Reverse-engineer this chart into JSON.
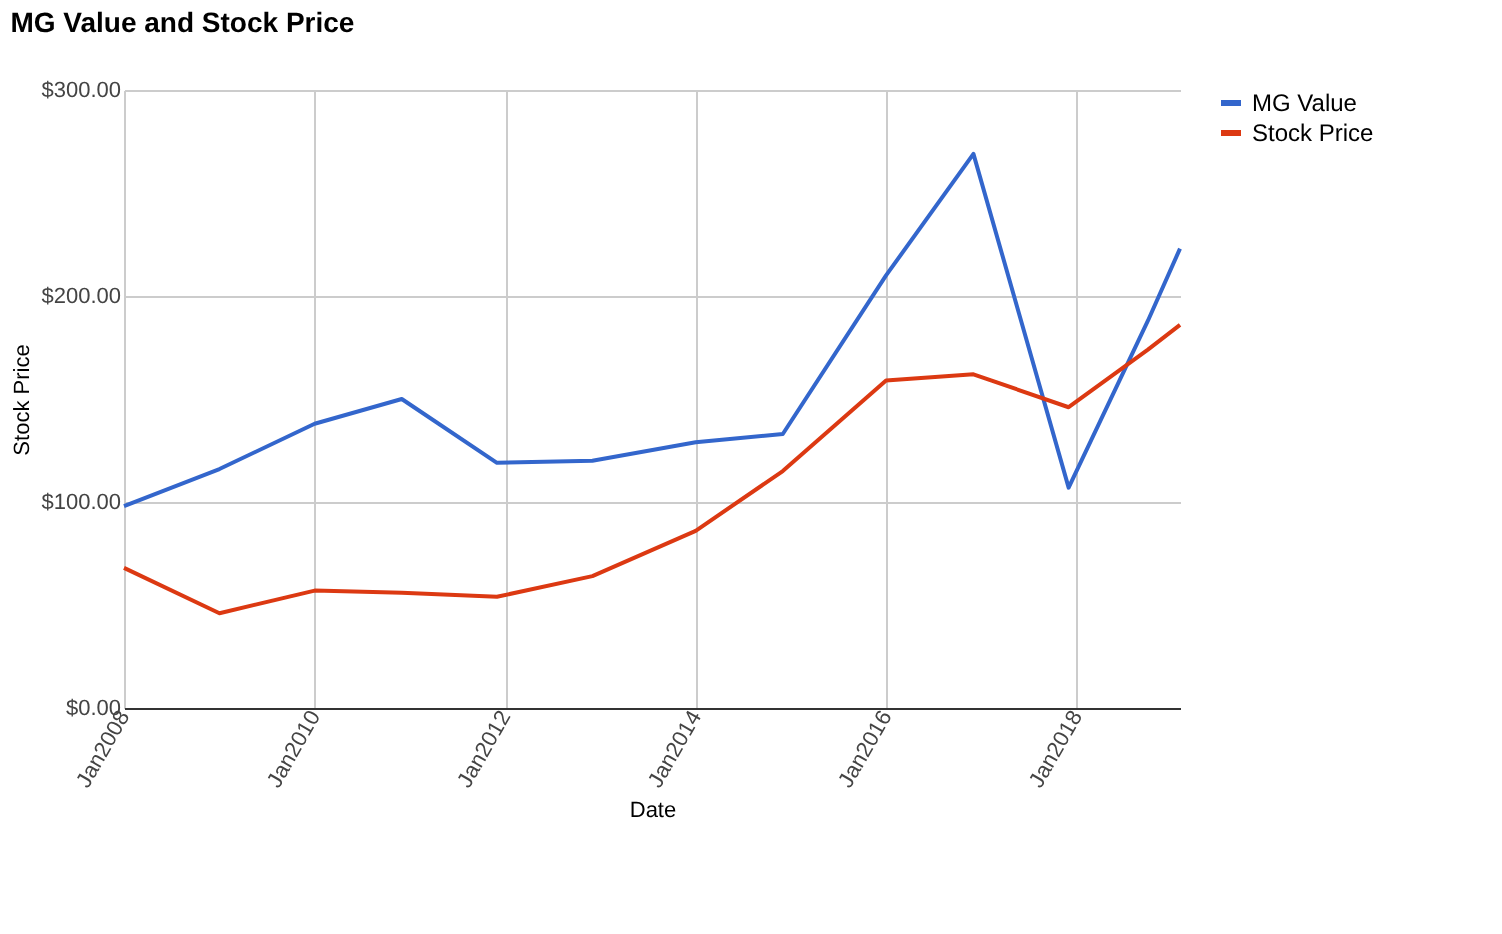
{
  "chart_data": {
    "type": "line",
    "title": "MG Value and Stock Price",
    "xlabel": "Date",
    "ylabel": "Stock Price",
    "x": [
      "2008-01",
      "2009-01",
      "2010-01",
      "2010-12",
      "2011-12",
      "2012-12",
      "2014-01",
      "2014-12",
      "2016-01",
      "2016-12",
      "2017-12",
      "2018-10",
      "2019-02"
    ],
    "series": [
      {
        "name": "MG Value",
        "color": "#3366cc",
        "values": [
          98,
          116,
          138,
          150,
          119,
          120,
          129,
          133,
          210,
          269,
          107,
          188,
          223
        ]
      },
      {
        "name": "Stock Price",
        "color": "#dc3912",
        "values": [
          68,
          46,
          57,
          56,
          54,
          64,
          86,
          115,
          159,
          162,
          146,
          174,
          186
        ]
      }
    ],
    "xlim": [
      "2008-01",
      "2019-02"
    ],
    "xticks": [
      {
        "value": "2008-01",
        "label": "Jan2008"
      },
      {
        "value": "2010-01",
        "label": "Jan2010"
      },
      {
        "value": "2012-01",
        "label": "Jan2012"
      },
      {
        "value": "2014-01",
        "label": "Jan2014"
      },
      {
        "value": "2016-01",
        "label": "Jan2016"
      },
      {
        "value": "2018-01",
        "label": "Jan2018"
      }
    ],
    "ylim": [
      0,
      300
    ],
    "yticks": [
      {
        "value": 0,
        "label": "$0.00"
      },
      {
        "value": 100,
        "label": "$100.00"
      },
      {
        "value": 200,
        "label": "$200.00"
      },
      {
        "value": 300,
        "label": "$300.00"
      }
    ],
    "grid": true,
    "legend": "top right",
    "marker": "none",
    "line_style": "solid"
  }
}
